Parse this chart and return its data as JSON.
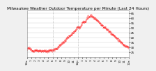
{
  "title": "Milwaukee Weather Outdoor Temperature per Minute (Last 24 Hours)",
  "title_fontsize": 4.2,
  "bg_color": "#f0f0f0",
  "plot_bg_color": "#ffffff",
  "line_color": "#ff0000",
  "grid_color": "#cccccc",
  "tick_fontsize": 3.0,
  "ylim": [
    20,
    68
  ],
  "yticks": [
    25,
    30,
    35,
    40,
    45,
    50,
    55,
    60,
    65
  ],
  "xlim": [
    0,
    1440
  ],
  "vline_positions": [
    360,
    720
  ],
  "vline_color": "#999999",
  "vline_style": ":",
  "xtick_labels": [
    "12a",
    "1",
    "2",
    "3",
    "4",
    "5",
    "6",
    "7",
    "8",
    "9",
    "10",
    "11",
    "12p",
    "1",
    "2",
    "3",
    "4",
    "5",
    "6",
    "7",
    "8",
    "9",
    "10",
    "11",
    "12a"
  ],
  "xtick_positions": [
    0,
    60,
    120,
    180,
    240,
    300,
    360,
    420,
    480,
    540,
    600,
    660,
    720,
    780,
    840,
    900,
    960,
    1020,
    1080,
    1140,
    1200,
    1260,
    1320,
    1380,
    1440
  ]
}
